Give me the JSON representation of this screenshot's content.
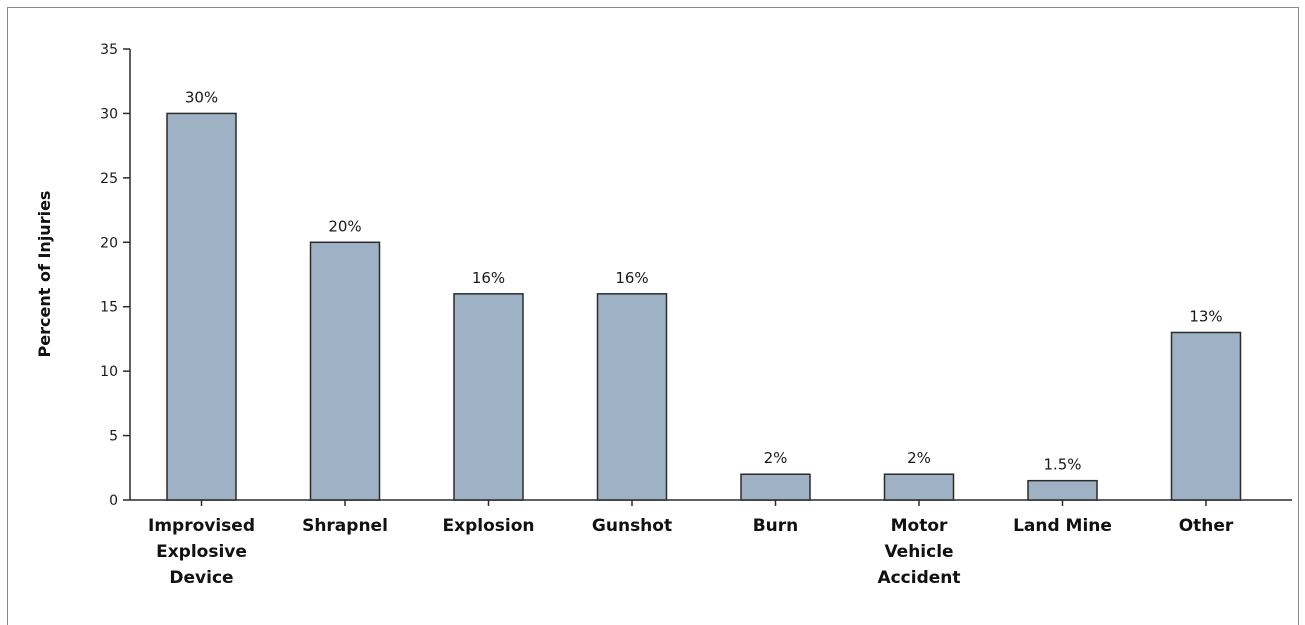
{
  "chart_data": {
    "type": "bar",
    "title": "",
    "xlabel": "",
    "ylabel": "Percent of Injuries",
    "ylim": [
      0,
      35
    ],
    "yticks": [
      0,
      5,
      10,
      15,
      20,
      25,
      30,
      35
    ],
    "grid": false,
    "legend": "none",
    "categories": [
      [
        "Improvised",
        "Explosive",
        "Device"
      ],
      [
        "Shrapnel"
      ],
      [
        "Explosion"
      ],
      [
        "Gunshot"
      ],
      [
        "Burn"
      ],
      [
        "Motor",
        "Vehicle",
        "Accident"
      ],
      [
        "Land Mine"
      ],
      [
        "Other"
      ]
    ],
    "values": [
      30,
      20,
      16,
      16,
      2,
      2,
      1.5,
      13
    ],
    "data_labels": [
      "30%",
      "20%",
      "16%",
      "16%",
      "2%",
      "2%",
      "1.5%",
      "13%"
    ],
    "colors": {
      "bar_fill": "#9fb2c5",
      "bar_stroke": "#2b2b2b",
      "axis": "#2b2b2b"
    }
  }
}
